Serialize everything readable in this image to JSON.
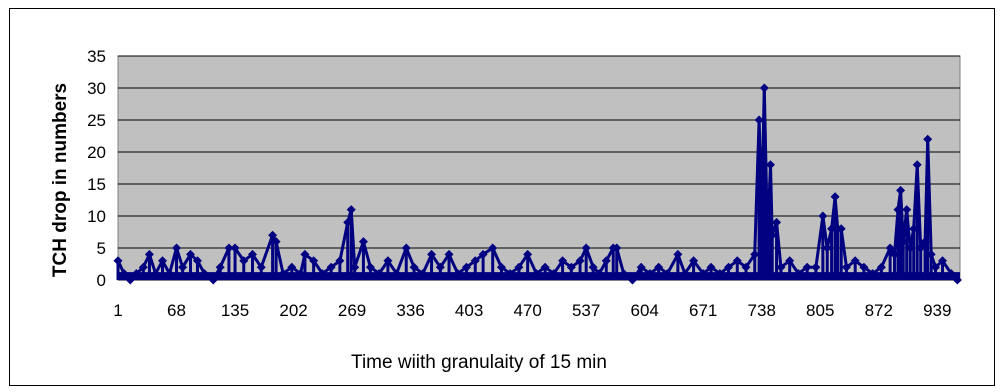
{
  "chart_data": {
    "type": "line",
    "title": "",
    "xlabel": "Time wiith granulaity of 15 min",
    "ylabel": "TCH drop in numbers",
    "xlim": [
      1,
      965
    ],
    "ylim": [
      0,
      35
    ],
    "yticks": [
      0,
      5,
      10,
      15,
      20,
      25,
      30,
      35
    ],
    "xticks": [
      1,
      68,
      135,
      202,
      269,
      336,
      403,
      470,
      537,
      604,
      671,
      738,
      805,
      872,
      939
    ],
    "grid": true,
    "plot_background": "#c0c0c0",
    "series_color": "#000080",
    "series": [
      {
        "name": "",
        "points": [
          [
            1,
            3
          ],
          [
            8,
            1
          ],
          [
            15,
            0
          ],
          [
            22,
            1
          ],
          [
            30,
            2
          ],
          [
            37,
            4
          ],
          [
            44,
            1
          ],
          [
            52,
            3
          ],
          [
            60,
            1
          ],
          [
            68,
            5
          ],
          [
            75,
            2
          ],
          [
            84,
            4
          ],
          [
            92,
            3
          ],
          [
            100,
            1
          ],
          [
            110,
            0
          ],
          [
            118,
            2
          ],
          [
            128,
            5
          ],
          [
            135,
            5
          ],
          [
            145,
            3
          ],
          [
            155,
            4
          ],
          [
            165,
            2
          ],
          [
            178,
            7
          ],
          [
            182,
            6
          ],
          [
            190,
            1
          ],
          [
            200,
            2
          ],
          [
            210,
            1
          ],
          [
            215,
            4
          ],
          [
            225,
            3
          ],
          [
            235,
            1
          ],
          [
            245,
            2
          ],
          [
            255,
            3
          ],
          [
            264,
            9
          ],
          [
            268,
            11
          ],
          [
            272,
            2
          ],
          [
            282,
            6
          ],
          [
            290,
            2
          ],
          [
            300,
            1
          ],
          [
            310,
            3
          ],
          [
            320,
            1
          ],
          [
            331,
            5
          ],
          [
            340,
            2
          ],
          [
            350,
            1
          ],
          [
            360,
            4
          ],
          [
            370,
            2
          ],
          [
            380,
            4
          ],
          [
            390,
            1
          ],
          [
            400,
            2
          ],
          [
            410,
            3
          ],
          [
            419,
            4
          ],
          [
            430,
            5
          ],
          [
            440,
            2
          ],
          [
            450,
            1
          ],
          [
            460,
            2
          ],
          [
            470,
            4
          ],
          [
            480,
            1
          ],
          [
            490,
            2
          ],
          [
            500,
            1
          ],
          [
            510,
            3
          ],
          [
            520,
            2
          ],
          [
            530,
            3
          ],
          [
            537,
            5
          ],
          [
            545,
            2
          ],
          [
            552,
            1
          ],
          [
            560,
            3
          ],
          [
            568,
            5
          ],
          [
            572,
            5
          ],
          [
            580,
            1
          ],
          [
            590,
            0
          ],
          [
            600,
            2
          ],
          [
            610,
            1
          ],
          [
            620,
            2
          ],
          [
            630,
            1
          ],
          [
            642,
            4
          ],
          [
            650,
            1
          ],
          [
            660,
            3
          ],
          [
            671,
            1
          ],
          [
            680,
            2
          ],
          [
            690,
            1
          ],
          [
            700,
            2
          ],
          [
            710,
            3
          ],
          [
            720,
            2
          ],
          [
            730,
            4
          ],
          [
            735,
            25
          ],
          [
            738,
            11
          ],
          [
            741,
            30
          ],
          [
            744,
            10
          ],
          [
            746,
            11
          ],
          [
            748,
            18
          ],
          [
            750,
            7
          ],
          [
            755,
            9
          ],
          [
            760,
            2
          ],
          [
            770,
            3
          ],
          [
            780,
            1
          ],
          [
            790,
            2
          ],
          [
            800,
            2
          ],
          [
            808,
            10
          ],
          [
            813,
            5
          ],
          [
            818,
            8
          ],
          [
            822,
            13
          ],
          [
            825,
            8
          ],
          [
            829,
            8
          ],
          [
            835,
            2
          ],
          [
            845,
            3
          ],
          [
            855,
            2
          ],
          [
            865,
            1
          ],
          [
            875,
            2
          ],
          [
            885,
            5
          ],
          [
            890,
            4
          ],
          [
            894,
            11
          ],
          [
            897,
            14
          ],
          [
            900,
            6
          ],
          [
            904,
            11
          ],
          [
            908,
            5
          ],
          [
            912,
            8
          ],
          [
            916,
            18
          ],
          [
            920,
            5
          ],
          [
            925,
            6
          ],
          [
            928,
            22
          ],
          [
            932,
            4
          ],
          [
            937,
            2
          ],
          [
            945,
            3
          ],
          [
            955,
            1
          ],
          [
            962,
            0
          ]
        ]
      }
    ]
  }
}
